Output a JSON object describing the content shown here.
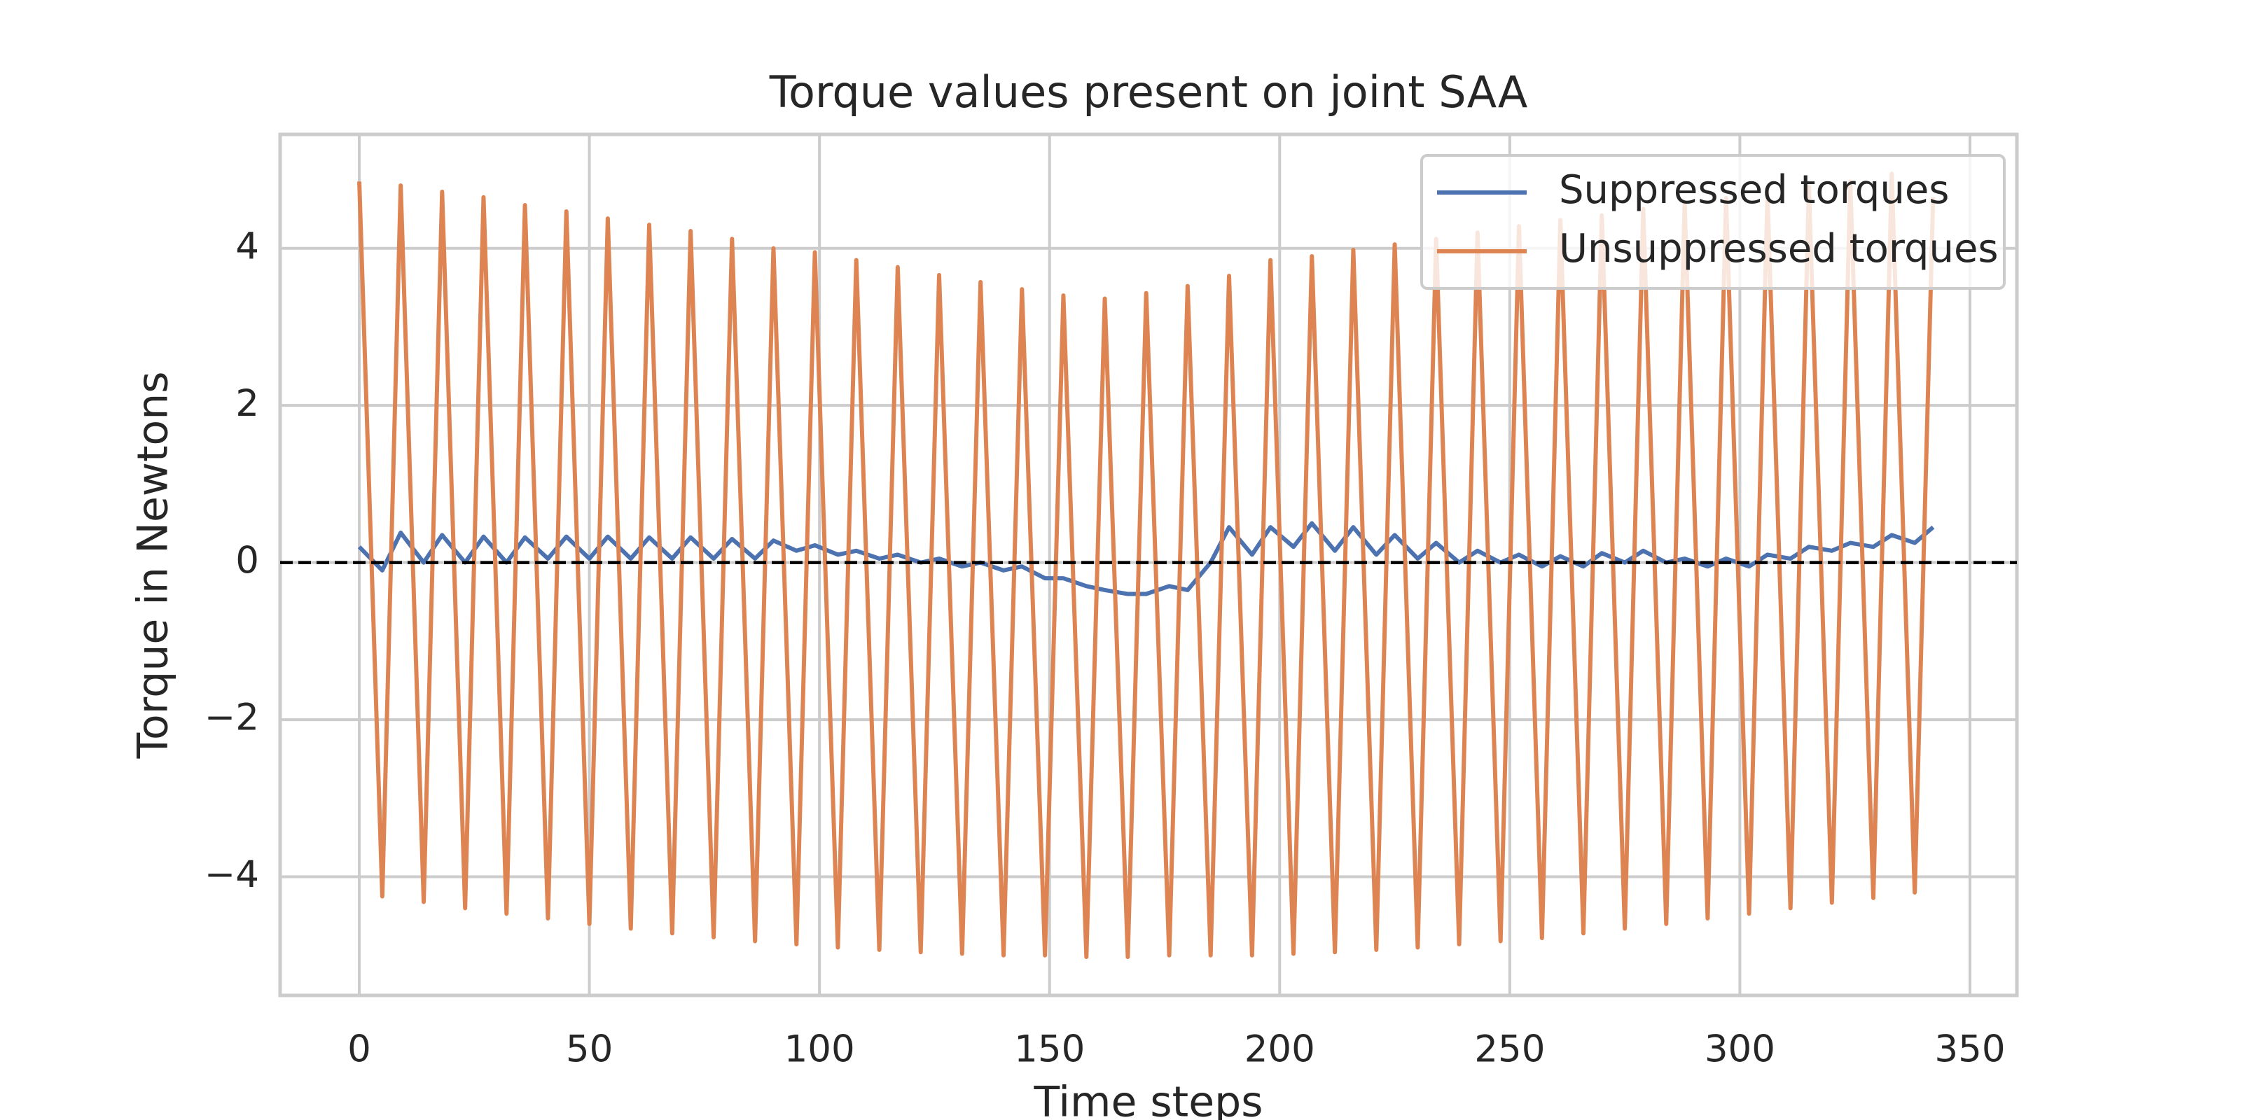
{
  "chart_data": {
    "type": "line",
    "title": "Torque values present on joint SAA",
    "x_label": "Time steps",
    "y_label": "Torque in Newtons",
    "x": [
      0,
      5,
      9,
      14,
      18,
      23,
      27,
      32,
      36,
      41,
      45,
      50,
      54,
      59,
      63,
      68,
      72,
      77,
      81,
      86,
      90,
      95,
      99,
      104,
      108,
      113,
      117,
      122,
      126,
      131,
      135,
      140,
      144,
      149,
      153,
      158,
      162,
      167,
      171,
      176,
      180,
      185,
      189,
      194,
      198,
      203,
      207,
      212,
      216,
      221,
      225,
      230,
      234,
      239,
      243,
      248,
      252,
      257,
      261,
      266,
      270,
      275,
      279,
      284,
      288,
      293,
      297,
      302,
      306,
      311,
      315,
      320,
      324,
      329,
      333,
      338,
      342
    ],
    "series": [
      {
        "name": "Suppressed torques",
        "color": "#4c72b0",
        "values": [
          0.2,
          -0.1,
          0.38,
          0.0,
          0.35,
          0.0,
          0.33,
          0.0,
          0.32,
          0.05,
          0.33,
          0.05,
          0.33,
          0.05,
          0.32,
          0.05,
          0.32,
          0.05,
          0.3,
          0.05,
          0.28,
          0.15,
          0.22,
          0.1,
          0.15,
          0.05,
          0.1,
          0.0,
          0.05,
          -0.05,
          0.0,
          -0.1,
          -0.05,
          -0.2,
          -0.2,
          -0.3,
          -0.35,
          -0.4,
          -0.4,
          -0.3,
          -0.35,
          0.0,
          0.45,
          0.1,
          0.45,
          0.2,
          0.5,
          0.15,
          0.45,
          0.1,
          0.35,
          0.05,
          0.25,
          0.0,
          0.15,
          0.0,
          0.1,
          -0.05,
          0.08,
          -0.05,
          0.12,
          0.0,
          0.15,
          0.0,
          0.05,
          -0.05,
          0.05,
          -0.05,
          0.1,
          0.05,
          0.2,
          0.15,
          0.25,
          0.2,
          0.35,
          0.25,
          0.45
        ]
      },
      {
        "name": "Unsuppressed torques",
        "color": "#dd8452",
        "values": [
          4.85,
          -4.25,
          4.8,
          -4.32,
          4.72,
          -4.4,
          4.65,
          -4.47,
          4.55,
          -4.53,
          4.47,
          -4.6,
          4.38,
          -4.66,
          4.3,
          -4.72,
          4.22,
          -4.77,
          4.12,
          -4.82,
          4.0,
          -4.86,
          3.95,
          -4.9,
          3.85,
          -4.93,
          3.76,
          -4.96,
          3.66,
          -4.98,
          3.57,
          -5.0,
          3.48,
          -5.0,
          3.4,
          -5.02,
          3.36,
          -5.02,
          3.43,
          -5.0,
          3.52,
          -5.0,
          3.65,
          -5.0,
          3.85,
          -4.98,
          3.9,
          -4.96,
          3.98,
          -4.93,
          4.05,
          -4.9,
          4.12,
          -4.86,
          4.2,
          -4.82,
          4.28,
          -4.78,
          4.36,
          -4.72,
          4.42,
          -4.66,
          4.5,
          -4.6,
          4.58,
          -4.53,
          4.64,
          -4.47,
          4.7,
          -4.4,
          4.78,
          -4.33,
          4.85,
          -4.27,
          4.95,
          -4.2,
          4.65
        ]
      }
    ],
    "reference_line": 0,
    "xlim": [
      -17.2,
      360.2
    ],
    "ylim": [
      -5.51,
      5.45
    ],
    "xticks": [
      0,
      50,
      100,
      150,
      200,
      250,
      300,
      350
    ],
    "yticks": [
      {
        "value": -4,
        "label": "−4"
      },
      {
        "value": -2,
        "label": "−2"
      },
      0,
      2,
      4
    ],
    "grid": true,
    "legend": "upper right"
  }
}
